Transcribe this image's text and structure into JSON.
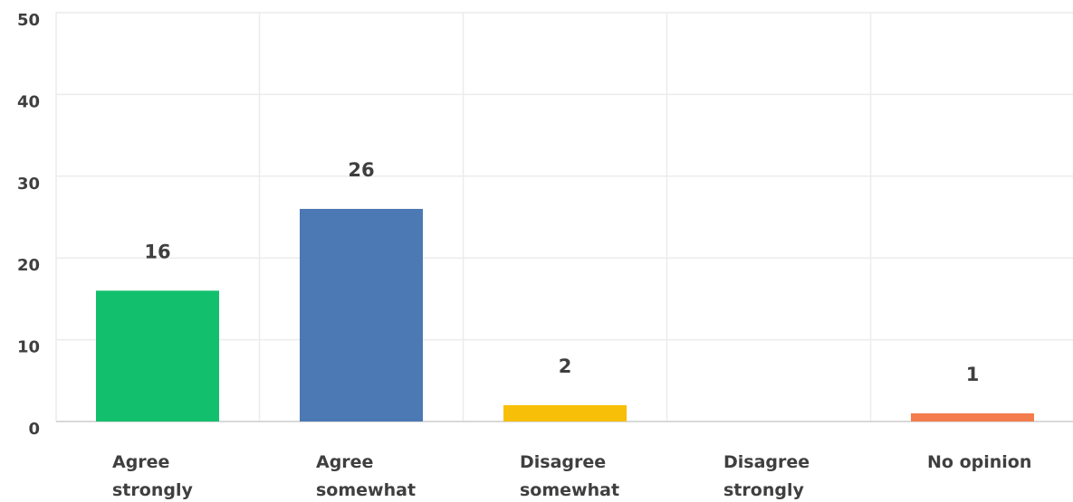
{
  "chart_data": {
    "type": "bar",
    "categories": [
      [
        "Agree",
        "strongly"
      ],
      [
        "Agree",
        "somewhat"
      ],
      [
        "Disagree",
        "somewhat"
      ],
      [
        "Disagree",
        "strongly"
      ],
      [
        "No opinion"
      ]
    ],
    "values": [
      16,
      26,
      2,
      0,
      1
    ],
    "data_labels": [
      "16",
      "26",
      "2",
      "",
      "1"
    ],
    "colors": [
      "#12bf6d",
      "#4c79b3",
      "#f7bf07",
      "#4c79b3",
      "#f47d4d"
    ],
    "ylim": [
      0,
      50
    ],
    "yticks": [
      "0",
      "10",
      "20",
      "30",
      "40",
      "50"
    ],
    "grid": true,
    "title": "",
    "xlabel": "",
    "ylabel": ""
  }
}
